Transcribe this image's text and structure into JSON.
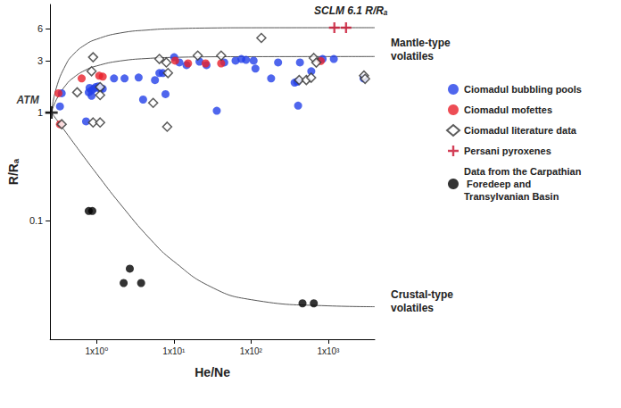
{
  "chart_data": {
    "type": "scatter",
    "x_label": "He/Ne",
    "y_label": "R/Rₐ",
    "log": true,
    "grid": false,
    "legend": "right",
    "xlim": [
      0.25,
      4000
    ],
    "xticks": [
      {
        "value": 1,
        "label": "1x10⁰"
      },
      {
        "value": 10,
        "label": "1x10¹"
      },
      {
        "value": 100,
        "label": "1x10²"
      },
      {
        "value": 1000,
        "label": "1x10³"
      }
    ],
    "ylim": [
      0.008,
      10
    ],
    "yticks": [
      0.1,
      1,
      3,
      6
    ],
    "series": [
      {
        "name": "Ciomadul bubbling pools",
        "color": "#2340e8",
        "marker": "circle",
        "values": [
          [
            0.335,
            1.14
          ],
          [
            0.353,
            1.51
          ],
          [
            0.73,
            0.83
          ],
          [
            0.79,
            1.54
          ],
          [
            0.81,
            1.69
          ],
          [
            0.86,
            1.43
          ],
          [
            0.86,
            1.6
          ],
          [
            0.92,
            1.66
          ],
          [
            0.97,
            1.72
          ],
          [
            1.05,
            1.75
          ],
          [
            1.11,
            1.66
          ],
          [
            1.2,
            1.66
          ],
          [
            1.68,
            2.07
          ],
          [
            2.3,
            2.07
          ],
          [
            3.5,
            2.11
          ],
          [
            4.0,
            1.32
          ],
          [
            5.7,
            2.0
          ],
          [
            6.5,
            2.32
          ],
          [
            7.2,
            2.32
          ],
          [
            7.8,
            1.48
          ],
          [
            10.1,
            3.25
          ],
          [
            11.8,
            2.91
          ],
          [
            14.6,
            2.75
          ],
          [
            21.5,
            2.96
          ],
          [
            26.5,
            2.75
          ],
          [
            36,
            1.04
          ],
          [
            45,
            2.91
          ],
          [
            63,
            3.02
          ],
          [
            75,
            3.13
          ],
          [
            86,
            3.07
          ],
          [
            108,
            3.02
          ],
          [
            114,
            2.55
          ],
          [
            182,
            2.07
          ],
          [
            224,
            2.91
          ],
          [
            367,
            1.89
          ],
          [
            397,
            1.93
          ],
          [
            407,
            1.16
          ],
          [
            430,
            2.91
          ],
          [
            603,
            2.41
          ],
          [
            845,
            3.13
          ],
          [
            1180,
            3.13
          ],
          [
            2870,
            2.07
          ]
        ]
      },
      {
        "name": "Ciomadul mofettes",
        "color": "#e8202a",
        "marker": "circle",
        "values": [
          [
            0.32,
            1.51
          ],
          [
            0.335,
            0.78
          ],
          [
            0.64,
            2.07
          ],
          [
            1.08,
            2.19
          ],
          [
            1.2,
            2.15
          ],
          [
            10.4,
            3.02
          ],
          [
            15.3,
            2.85
          ],
          [
            25.8,
            2.85
          ],
          [
            41,
            2.85
          ],
          [
            800,
            3.0
          ]
        ]
      },
      {
        "name": "Ciomadul literature data",
        "color": "#333333",
        "marker": "diamond_open",
        "values": [
          [
            0.353,
            0.78
          ],
          [
            0.56,
            1.54
          ],
          [
            0.9,
            3.25
          ],
          [
            0.86,
            2.41
          ],
          [
            0.9,
            0.81
          ],
          [
            1.11,
            1.72
          ],
          [
            1.11,
            0.81
          ],
          [
            1.11,
            1.45
          ],
          [
            6.5,
            3.13
          ],
          [
            5.4,
            1.23
          ],
          [
            8.0,
            2.91
          ],
          [
            8.4,
            2.32
          ],
          [
            8.2,
            0.74
          ],
          [
            20.4,
            3.37
          ],
          [
            41,
            3.37
          ],
          [
            136,
            4.9
          ],
          [
            420,
            2.0
          ],
          [
            520,
            2.0
          ],
          [
            600,
            2.1
          ],
          [
            650,
            3.2
          ],
          [
            700,
            2.9
          ],
          [
            2900,
            2.2
          ],
          [
            3000,
            2.05
          ]
        ]
      },
      {
        "name": "Persani pyroxenes",
        "color": "#c8102e",
        "marker": "cross",
        "values": [
          [
            1200,
            6.1
          ],
          [
            1700,
            6.1
          ]
        ]
      },
      {
        "name": "Data from the Carpathian Foredeep and Transylvanian Basin",
        "color": "#000000",
        "marker": "circle",
        "values": [
          [
            0.79,
            0.123
          ],
          [
            0.88,
            0.123
          ],
          [
            2.69,
            0.036
          ],
          [
            2.24,
            0.0265
          ],
          [
            3.77,
            0.0265
          ],
          [
            464,
            0.0172
          ],
          [
            650,
            0.0172
          ]
        ]
      }
    ],
    "reference_point": {
      "name": "ATM",
      "x": 0.26,
      "y": 1,
      "color": "#000000",
      "marker": "cross"
    },
    "curves": [
      {
        "color": "#555555",
        "line_style": "solid",
        "values": [
          [
            0.26,
            1
          ],
          [
            0.3,
            1.68
          ],
          [
            0.4,
            2.78
          ],
          [
            0.5,
            3.45
          ],
          [
            0.7,
            4.21
          ],
          [
            1,
            4.77
          ],
          [
            2,
            5.44
          ],
          [
            5,
            5.83
          ],
          [
            10,
            5.97
          ],
          [
            30,
            6.06
          ],
          [
            100,
            6.09
          ],
          [
            4000,
            6.1
          ]
        ]
      },
      {
        "color": "#555555",
        "line_style": "solid",
        "values": [
          [
            0.26,
            1
          ],
          [
            0.3,
            1.31
          ],
          [
            0.4,
            1.8
          ],
          [
            0.5,
            2.1
          ],
          [
            0.7,
            2.45
          ],
          [
            1,
            2.7
          ],
          [
            2,
            3.0
          ],
          [
            5,
            3.18
          ],
          [
            10,
            3.24
          ],
          [
            30,
            3.28
          ],
          [
            100,
            3.29
          ],
          [
            4000,
            3.3
          ]
        ]
      },
      {
        "color": "#555555",
        "line_style": "solid",
        "values": [
          [
            0.26,
            1
          ],
          [
            0.3,
            0.869
          ],
          [
            0.4,
            0.656
          ],
          [
            0.5,
            0.528
          ],
          [
            0.7,
            0.381
          ],
          [
            1,
            0.272
          ],
          [
            2,
            0.144
          ],
          [
            5,
            0.067
          ],
          [
            10,
            0.042
          ],
          [
            30,
            0.0245
          ],
          [
            100,
            0.0186
          ],
          [
            1000,
            0.0163
          ],
          [
            4000,
            0.016
          ]
        ]
      }
    ],
    "annotations": [
      "SCLM 6.1 R/Rₐ",
      "Mantle-type volatiles",
      "Crustal-type volatiles"
    ]
  }
}
